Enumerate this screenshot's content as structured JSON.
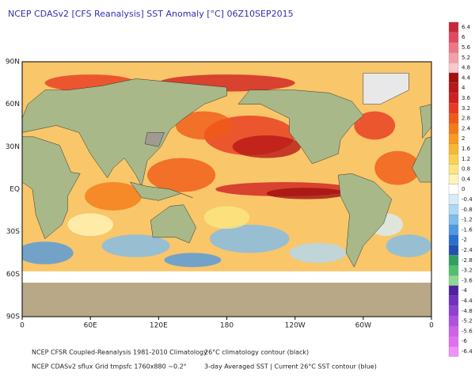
{
  "header": {
    "title": "NCEP CDASv2 [CFS Reanalysis] SST Anomaly [°C] 06Z10SEP2015"
  },
  "map": {
    "y_labels": [
      "90N",
      "60N",
      "30N",
      "EQ",
      "30S",
      "60S",
      "90S"
    ],
    "x_labels": [
      "0",
      "60E",
      "120E",
      "180",
      "120W",
      "60W",
      "0"
    ]
  },
  "colorbar": {
    "labels": [
      "6.4",
      "6",
      "5.6",
      "5.2",
      "4.8",
      "4.4",
      "4",
      "3.6",
      "3.2",
      "2.8",
      "2.4",
      "2",
      "1.6",
      "1.2",
      "0.8",
      "0.4",
      "0",
      "-0.4",
      "-0.8",
      "-1.2",
      "-1.6",
      "-2",
      "-2.4",
      "-2.8",
      "-3.2",
      "-3.6",
      "-4",
      "-4.4",
      "-4.8",
      "-5.2",
      "-5.6",
      "-6",
      "-6.4"
    ],
    "colors": [
      "#c8283c",
      "#e04a5e",
      "#f07585",
      "#f4a0aa",
      "#f8c8cc",
      "#a01010",
      "#b81818",
      "#d02020",
      "#e83a20",
      "#f05a18",
      "#f57a18",
      "#f89a20",
      "#fab830",
      "#fcd050",
      "#fde680",
      "#fff4b8",
      "#ffffff",
      "#d8ecf8",
      "#b0d8f4",
      "#80bcec",
      "#5098e0",
      "#2870d0",
      "#2050b0",
      "#30a060",
      "#50c070",
      "#90d890",
      "#5020a0",
      "#7030c0",
      "#9040d0",
      "#b050e0",
      "#d060e8",
      "#e070f0",
      "#f090f8"
    ]
  },
  "footer": {
    "lines": [
      [
        "NCEP CFSR Coupled-Reanalysis 1981-2010 Climatology",
        "26°C climatology contour (black)"
      ],
      [
        "NCEP CDASv2 sflux Grid tmpsfc 1760x880 ~0.2°",
        "3-day Averaged SST | Current 26°C SST contour (blue)"
      ]
    ]
  }
}
